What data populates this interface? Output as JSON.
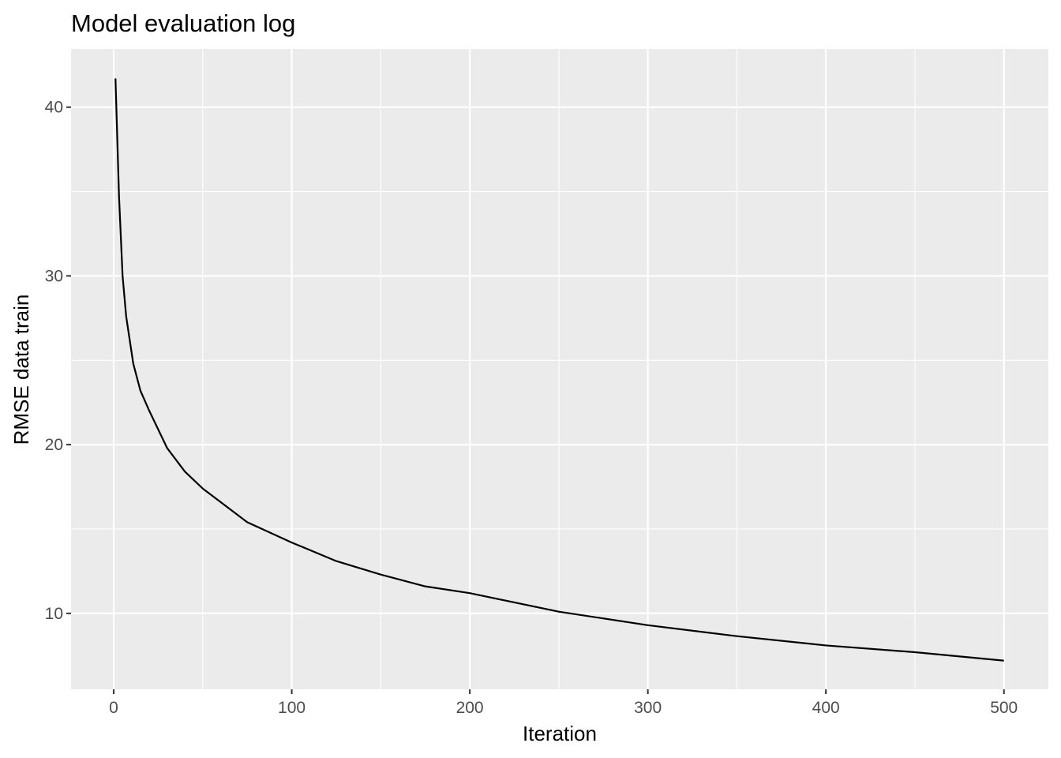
{
  "chart_data": {
    "type": "line",
    "title": "Model evaluation log",
    "x_label": "Iteration",
    "y_label": "RMSE data train",
    "x": [
      1,
      3,
      5,
      7,
      11,
      15,
      20,
      25,
      30,
      40,
      50,
      60,
      75,
      100,
      125,
      150,
      175,
      200,
      250,
      300,
      350,
      400,
      450,
      500
    ],
    "series": [
      {
        "name": "RMSE data train",
        "color": "#000000",
        "values": [
          41.7,
          34.7,
          30.0,
          27.6,
          24.8,
          23.2,
          22.0,
          20.9,
          19.8,
          18.4,
          17.4,
          16.6,
          15.4,
          14.2,
          13.1,
          12.3,
          11.6,
          11.2,
          10.1,
          9.3,
          8.65,
          8.1,
          7.7,
          7.2
        ]
      }
    ],
    "xlim": [
      -23.95,
      524.95
    ],
    "ylim": [
      5.5,
      43.45
    ],
    "xticks": [
      0,
      100,
      200,
      300,
      400,
      500
    ],
    "yticks": [
      10,
      20,
      30,
      40
    ],
    "xminor_ticks": [
      50,
      150,
      250,
      350,
      450
    ],
    "yminor_ticks": [
      15,
      25,
      35
    ],
    "grid": true,
    "panel_color": "#ebebeb"
  }
}
